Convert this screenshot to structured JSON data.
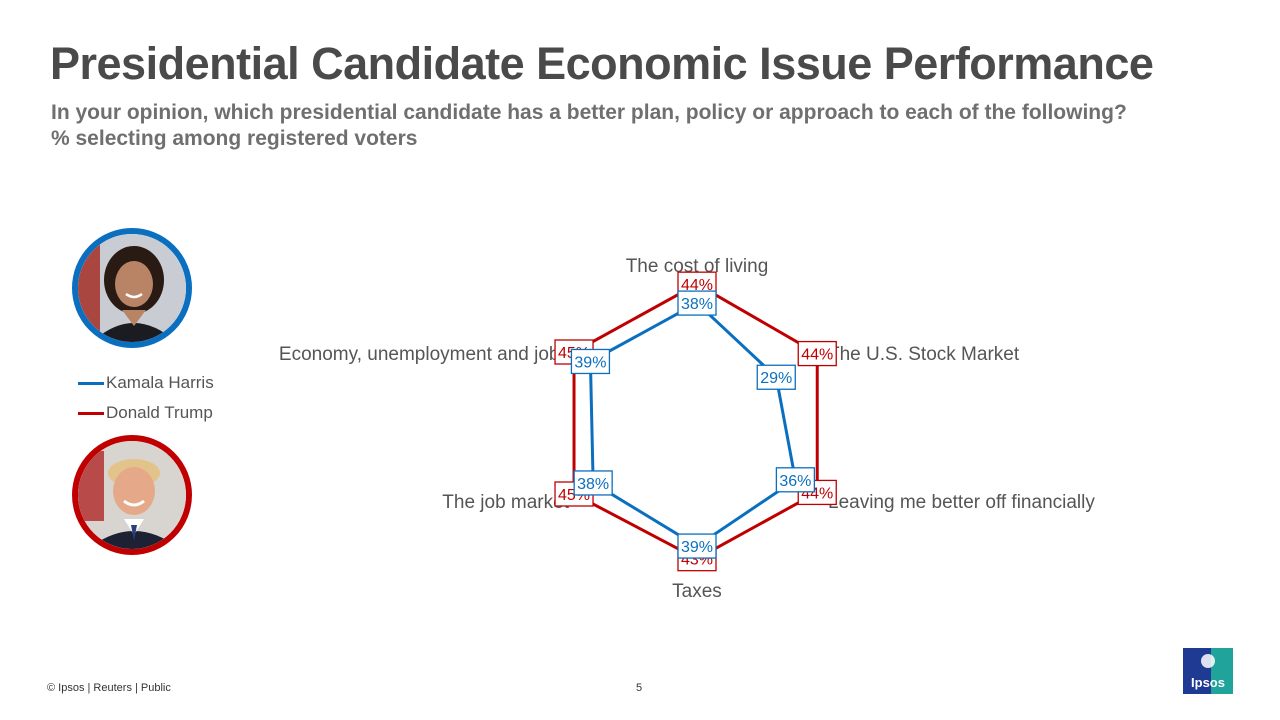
{
  "header": {
    "title": "Presidential Candidate Economic Issue Performance",
    "subtitle_line1": "In your opinion, which presidential candidate has a better plan, policy or approach to each of the following?",
    "subtitle_line2": "% selecting among registered voters"
  },
  "legend": {
    "items": [
      {
        "label": "Kamala Harris",
        "color": "#0b6fc0"
      },
      {
        "label": "Donald Trump",
        "color": "#c00000"
      }
    ]
  },
  "chart_data": {
    "type": "radar",
    "categories": [
      "The cost of living",
      "The U.S. Stock Market",
      "Leaving me better off financially",
      "Taxes",
      "The job market",
      "Economy, unemployment and jobs"
    ],
    "series": [
      {
        "name": "Kamala Harris",
        "color": "#0b6fc0",
        "values": [
          38,
          29,
          36,
          39,
          38,
          39
        ]
      },
      {
        "name": "Donald Trump",
        "color": "#c00000",
        "values": [
          44,
          44,
          44,
          43,
          45,
          45
        ]
      }
    ],
    "value_suffix": "%",
    "rlim": [
      0,
      45
    ],
    "grid": false
  },
  "footer": {
    "source": "© Ipsos | Reuters | Public",
    "page_number": "5",
    "logo_text": "Ipsos"
  },
  "icons": {
    "harris_photo": "portrait-photo",
    "trump_photo": "portrait-photo",
    "logo": "ipsos-logo"
  }
}
